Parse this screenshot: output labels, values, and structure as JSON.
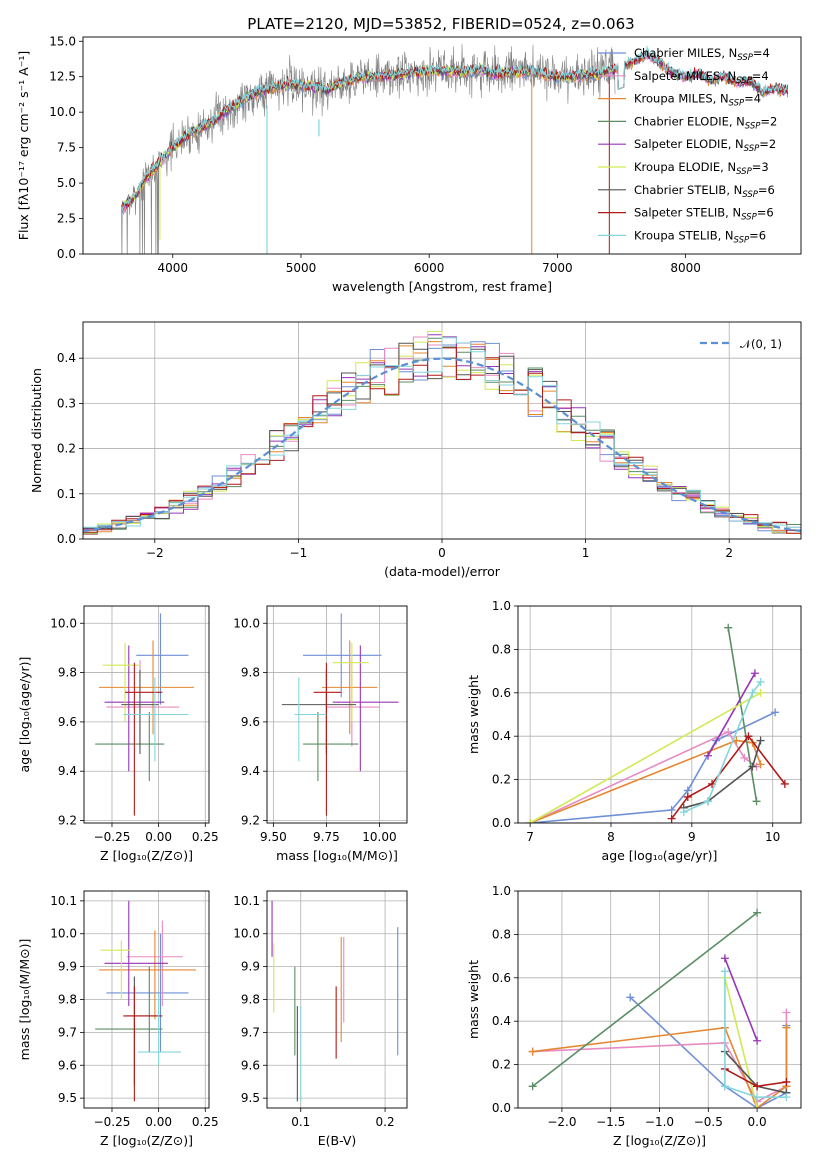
{
  "figure": {
    "title": "PLATE=2120, MJD=53852, FIBERID=0524, z=0.063"
  },
  "colors": [
    "#6f8fd8",
    "#e88bc2",
    "#e58730",
    "#5a8d62",
    "#9736b6",
    "#cfea55",
    "#545454",
    "#b21919",
    "#84d6dc"
  ],
  "chart_data": [
    {
      "id": "spectrum",
      "type": "line",
      "xlabel": "wavelength [Angstrom, rest frame]",
      "ylabel": "Flux [fλ10⁻¹⁷ erg cm⁻² s⁻¹ A⁻¹]",
      "xlim": [
        3300,
        8900
      ],
      "ylim": [
        0,
        15.3
      ],
      "xticks": [
        4000,
        5000,
        6000,
        7000,
        8000
      ],
      "yticks": [
        0,
        2.5,
        5,
        7.5,
        10,
        12.5,
        15
      ],
      "xtick_labels": [
        "4000",
        "5000",
        "6000",
        "7000",
        "8000"
      ],
      "ytick_labels": [
        "0.0",
        "2.5",
        "5.0",
        "7.5",
        "10.0",
        "12.5",
        "15.0"
      ],
      "grid": false,
      "legend_position": "right",
      "data_color": "#808080",
      "series": [
        {
          "name": "Chabrier MILES, N",
          "sub": "SSP",
          "eq": "=4"
        },
        {
          "name": "Salpeter MILES, N",
          "sub": "SSP",
          "eq": "=4"
        },
        {
          "name": "Kroupa MILES, N",
          "sub": "SSP",
          "eq": "=4"
        },
        {
          "name": "Chabrier ELODIE, N",
          "sub": "SSP",
          "eq": "=2"
        },
        {
          "name": "Salpeter ELODIE, N",
          "sub": "SSP",
          "eq": "=2"
        },
        {
          "name": "Kroupa ELODIE, N",
          "sub": "SSP",
          "eq": "=3"
        },
        {
          "name": "Chabrier STELIB, N",
          "sub": "SSP",
          "eq": "=6"
        },
        {
          "name": "Salpeter STELIB, N",
          "sub": "SSP",
          "eq": "=6"
        },
        {
          "name": "Kroupa STELIB, N",
          "sub": "SSP",
          "eq": "=6"
        }
      ],
      "continuum": [
        [
          3600,
          3.2
        ],
        [
          3700,
          4.0
        ],
        [
          3800,
          5.5
        ],
        [
          3900,
          6.5
        ],
        [
          4000,
          7.5
        ],
        [
          4100,
          8.3
        ],
        [
          4200,
          8.8
        ],
        [
          4300,
          9.2
        ],
        [
          4400,
          10.0
        ],
        [
          4500,
          10.6
        ],
        [
          4600,
          11.2
        ],
        [
          4700,
          11.5
        ],
        [
          4800,
          11.8
        ],
        [
          4900,
          12.0
        ],
        [
          5000,
          11.9
        ],
        [
          5100,
          11.8
        ],
        [
          5200,
          11.6
        ],
        [
          5300,
          12.0
        ],
        [
          5400,
          12.3
        ],
        [
          5500,
          12.5
        ],
        [
          5600,
          12.5
        ],
        [
          5700,
          12.6
        ],
        [
          5800,
          12.7
        ],
        [
          5900,
          12.8
        ],
        [
          6000,
          12.9
        ],
        [
          6100,
          12.9
        ],
        [
          6200,
          12.9
        ],
        [
          6300,
          12.9
        ],
        [
          6400,
          13.0
        ],
        [
          6500,
          12.7
        ],
        [
          6600,
          12.8
        ],
        [
          6700,
          12.8
        ],
        [
          6800,
          12.9
        ],
        [
          6900,
          12.7
        ],
        [
          7000,
          12.5
        ],
        [
          7100,
          12.5
        ],
        [
          7200,
          12.6
        ],
        [
          7300,
          12.7
        ],
        [
          7400,
          12.9
        ],
        [
          7500,
          13.2
        ],
        [
          7600,
          13.6
        ],
        [
          7700,
          14.1
        ],
        [
          7800,
          13.5
        ],
        [
          7900,
          12.7
        ],
        [
          8000,
          12.5
        ],
        [
          8100,
          12.7
        ],
        [
          8200,
          12.3
        ],
        [
          8300,
          12.5
        ],
        [
          8400,
          12.1
        ],
        [
          8500,
          12.2
        ],
        [
          8600,
          11.4
        ],
        [
          8700,
          11.7
        ],
        [
          8800,
          11.5
        ]
      ]
    },
    {
      "id": "residuals",
      "type": "line",
      "xlabel": "(data-model)/error",
      "ylabel": "Normed distribution",
      "xlim": [
        -2.5,
        2.5
      ],
      "ylim": [
        0,
        0.48
      ],
      "xticks": [
        -2,
        -1,
        0,
        1,
        2
      ],
      "yticks": [
        0,
        0.1,
        0.2,
        0.3,
        0.4
      ],
      "xtick_labels": [
        "−2",
        "−1",
        "0",
        "1",
        "2"
      ],
      "ytick_labels": [
        "0.0",
        "0.1",
        "0.2",
        "0.3",
        "0.4"
      ],
      "grid": true,
      "legend_position": "top-right",
      "series": [
        {
          "name": "𝒩(0, 1)",
          "type": "gaussian",
          "mean": 0,
          "sigma": 1
        }
      ],
      "hist_bin_width": 0.1
    },
    {
      "id": "age-vs-Z",
      "type": "errorbar",
      "xlabel": "Z [log₁₀(Z/Z⊙)]",
      "ylabel": "age  [log₁₀(age/yr)]",
      "xlim": [
        -0.4,
        0.27
      ],
      "ylim": [
        9.19,
        10.07
      ],
      "xticks": [
        -0.25,
        0,
        0.25
      ],
      "yticks": [
        9.2,
        9.4,
        9.6,
        9.8,
        10.0
      ],
      "xtick_labels": [
        "−0.25",
        "0.00",
        "0.25"
      ],
      "ytick_labels": [
        "9.2",
        "9.4",
        "9.6",
        "9.8",
        "10.0"
      ],
      "grid": true,
      "points": [
        {
          "x": 0.01,
          "xlo": -0.12,
          "xhi": 0.16,
          "y": 9.87,
          "ylo": 9.67,
          "yhi": 10.04
        },
        {
          "x": -0.1,
          "xlo": -0.28,
          "xhi": 0.11,
          "y": 9.66,
          "ylo": 9.5,
          "yhi": 9.85
        },
        {
          "x": -0.03,
          "xlo": -0.32,
          "xhi": 0.19,
          "y": 9.74,
          "ylo": 9.55,
          "yhi": 9.93
        },
        {
          "x": -0.05,
          "xlo": -0.34,
          "xhi": 0.03,
          "y": 9.51,
          "ylo": 9.36,
          "yhi": 9.64
        },
        {
          "x": -0.16,
          "xlo": -0.29,
          "xhi": 0.03,
          "y": 9.68,
          "ylo": 9.4,
          "yhi": 9.91
        },
        {
          "x": -0.18,
          "xlo": -0.3,
          "xhi": -0.1,
          "y": 9.83,
          "ylo": 9.6,
          "yhi": 9.92
        },
        {
          "x": -0.1,
          "xlo": -0.2,
          "xhi": 0.0,
          "y": 9.67,
          "ylo": 9.47,
          "yhi": 9.81
        },
        {
          "x": -0.13,
          "xlo": -0.18,
          "xhi": 0.02,
          "y": 9.72,
          "ylo": 9.22,
          "yhi": 9.84
        },
        {
          "x": -0.02,
          "xlo": -0.19,
          "xhi": 0.16,
          "y": 9.63,
          "ylo": 9.44,
          "yhi": 9.78
        }
      ]
    },
    {
      "id": "age-vs-mass",
      "type": "errorbar",
      "xlabel": "mass [log₁₀(M/M⊙)]",
      "ylabel": "",
      "xlim": [
        9.47,
        10.13
      ],
      "ylim": [
        9.19,
        10.07
      ],
      "xticks": [
        9.5,
        9.75,
        10.0
      ],
      "yticks": [
        9.2,
        9.4,
        9.6,
        9.8,
        10.0
      ],
      "xtick_labels": [
        "9.50",
        "9.75",
        "10.00"
      ],
      "ytick_labels": [
        "9.2",
        "9.4",
        "9.6",
        "9.8",
        "10.0"
      ],
      "grid": true,
      "points": [
        {
          "x": 9.82,
          "xlo": 9.64,
          "xhi": 10.01,
          "y": 9.87,
          "ylo": 9.7,
          "yhi": 10.04
        },
        {
          "x": 9.87,
          "xlo": 9.75,
          "xhi": 10.0,
          "y": 9.66,
          "ylo": 9.5,
          "yhi": 9.85
        },
        {
          "x": 9.86,
          "xlo": 9.73,
          "xhi": 9.99,
          "y": 9.74,
          "ylo": 9.55,
          "yhi": 9.93
        },
        {
          "x": 9.71,
          "xlo": 9.64,
          "xhi": 9.9,
          "y": 9.51,
          "ylo": 9.36,
          "yhi": 9.64
        },
        {
          "x": 9.91,
          "xlo": 9.78,
          "xhi": 10.09,
          "y": 9.68,
          "ylo": 9.4,
          "yhi": 9.91
        },
        {
          "x": 9.87,
          "xlo": 9.78,
          "xhi": 9.95,
          "y": 9.84,
          "ylo": 9.6,
          "yhi": 9.92
        },
        {
          "x": 9.75,
          "xlo": 9.54,
          "xhi": 9.89,
          "y": 9.67,
          "ylo": 9.47,
          "yhi": 9.81
        },
        {
          "x": 9.75,
          "xlo": 9.69,
          "xhi": 9.82,
          "y": 9.72,
          "ylo": 9.22,
          "yhi": 9.84
        },
        {
          "x": 9.62,
          "xlo": 9.6,
          "xhi": 9.75,
          "y": 9.63,
          "ylo": 9.44,
          "yhi": 9.78
        }
      ]
    },
    {
      "id": "weight-vs-age",
      "type": "line",
      "xlabel": "age  [log₁₀(age/yr)]",
      "ylabel": "mass weight",
      "xlim": [
        6.85,
        10.35
      ],
      "ylim": [
        0,
        1.0
      ],
      "xticks": [
        7,
        8,
        9,
        10
      ],
      "yticks": [
        0,
        0.2,
        0.4,
        0.6,
        0.8,
        1.0
      ],
      "xtick_labels": [
        "7",
        "8",
        "9",
        "10"
      ],
      "ytick_labels": [
        "0.0",
        "0.2",
        "0.4",
        "0.6",
        "0.8",
        "1.0"
      ],
      "grid": true,
      "series": [
        {
          "x": [
            7.0,
            8.75,
            8.95,
            9.3,
            10.03
          ],
          "y": [
            0.0,
            0.06,
            0.15,
            0.38,
            0.51
          ]
        },
        {
          "x": [
            7.0,
            9.45,
            9.65,
            9.8
          ],
          "y": [
            0.0,
            0.42,
            0.3,
            0.26
          ]
        },
        {
          "x": [
            7.0,
            9.55,
            9.75,
            9.85
          ],
          "y": [
            0.0,
            0.38,
            0.37,
            0.27
          ]
        },
        {
          "x": [
            9.45,
            9.8
          ],
          "y": [
            0.9,
            0.1
          ]
        },
        {
          "x": [
            9.2,
            9.78
          ],
          "y": [
            0.31,
            0.69
          ]
        },
        {
          "x": [
            7.0,
            9.85
          ],
          "y": [
            0.0,
            0.6
          ]
        },
        {
          "x": [
            8.9,
            9.2,
            9.75,
            9.85
          ],
          "y": [
            0.07,
            0.1,
            0.26,
            0.38
          ]
        },
        {
          "x": [
            8.75,
            8.95,
            9.25,
            9.7,
            10.15
          ],
          "y": [
            0.02,
            0.12,
            0.18,
            0.4,
            0.18
          ]
        },
        {
          "x": [
            8.9,
            9.2,
            9.75,
            9.85
          ],
          "y": [
            0.05,
            0.1,
            0.6,
            0.65
          ]
        }
      ]
    },
    {
      "id": "mass-vs-Z",
      "type": "errorbar",
      "xlabel": "Z [log₁₀(Z/Z⊙)]",
      "ylabel": "mass [log₁₀(M/M⊙)]",
      "xlim": [
        -0.4,
        0.27
      ],
      "ylim": [
        9.47,
        10.13
      ],
      "xticks": [
        -0.25,
        0,
        0.25
      ],
      "yticks": [
        9.5,
        9.6,
        9.7,
        9.8,
        9.9,
        10.0,
        10.1
      ],
      "xtick_labels": [
        "−0.25",
        "0.00",
        "0.25"
      ],
      "ytick_labels": [
        "9.5",
        "9.6",
        "9.7",
        "9.8",
        "9.9",
        "10.0",
        "10.1"
      ],
      "grid": true,
      "points": [
        {
          "x": 0.01,
          "xlo": -0.28,
          "xhi": 0.16,
          "y": 9.82,
          "ylo": 9.64,
          "yhi": 10.0
        },
        {
          "x": 0.02,
          "xlo": -0.17,
          "xhi": 0.13,
          "y": 9.93,
          "ylo": 9.78,
          "yhi": 10.04
        },
        {
          "x": -0.02,
          "xlo": -0.32,
          "xhi": 0.2,
          "y": 9.89,
          "ylo": 9.74,
          "yhi": 10.01
        },
        {
          "x": -0.05,
          "xlo": -0.34,
          "xhi": 0.02,
          "y": 9.71,
          "ylo": 9.64,
          "yhi": 9.9
        },
        {
          "x": -0.16,
          "xlo": -0.29,
          "xhi": 0.05,
          "y": 9.91,
          "ylo": 9.78,
          "yhi": 10.1
        },
        {
          "x": -0.2,
          "xlo": -0.31,
          "xhi": -0.15,
          "y": 9.95,
          "ylo": 9.8,
          "yhi": 9.98
        },
        {
          "x": -0.13,
          "xlo": -0.17,
          "xhi": 0.01,
          "y": 9.75,
          "ylo": 9.54,
          "yhi": 9.87
        },
        {
          "x": -0.13,
          "xlo": -0.19,
          "xhi": 0.02,
          "y": 9.75,
          "ylo": 9.49,
          "yhi": 9.84
        },
        {
          "x": 0.0,
          "xlo": -0.11,
          "xhi": 0.12,
          "y": 9.64,
          "ylo": 9.6,
          "yhi": 9.82
        }
      ]
    },
    {
      "id": "mass-vs-EBV",
      "type": "errorbar",
      "xlabel": "E(B-V)",
      "ylabel": "",
      "xlim": [
        0.06,
        0.226
      ],
      "ylim": [
        9.47,
        10.13
      ],
      "xticks": [
        0.1,
        0.2
      ],
      "yticks": [
        9.5,
        9.6,
        9.7,
        9.8,
        9.9,
        10.0,
        10.1
      ],
      "xtick_labels": [
        "0.1",
        "0.2"
      ],
      "ytick_labels": [
        "9.5",
        "9.6",
        "9.7",
        "9.8",
        "9.9",
        "10.0",
        "10.1"
      ],
      "grid": true,
      "points": [
        {
          "x": 0.215,
          "y": 9.82,
          "ylo": 9.63,
          "yhi": 10.02
        },
        {
          "x": 0.151,
          "y": 9.87,
          "ylo": 9.73,
          "yhi": 9.99
        },
        {
          "x": 0.148,
          "y": 9.86,
          "ylo": 9.67,
          "yhi": 9.99
        },
        {
          "x": 0.093,
          "y": 9.76,
          "ylo": 9.63,
          "yhi": 9.9
        },
        {
          "x": 0.066,
          "y": 9.96,
          "ylo": 9.93,
          "yhi": 10.1
        },
        {
          "x": 0.068,
          "y": 9.88,
          "ylo": 9.76,
          "yhi": 9.97
        },
        {
          "x": 0.096,
          "y": 9.63,
          "ylo": 9.49,
          "yhi": 9.78
        },
        {
          "x": 0.142,
          "y": 9.72,
          "ylo": 9.62,
          "yhi": 9.84
        },
        {
          "x": 0.1,
          "y": 9.64,
          "ylo": 9.49,
          "yhi": 9.78
        }
      ]
    },
    {
      "id": "weight-vs-Z",
      "type": "line",
      "xlabel": "Z [log₁₀(Z/Z⊙)]",
      "ylabel": "mass weight",
      "xlim": [
        -2.45,
        0.45
      ],
      "ylim": [
        0,
        1.0
      ],
      "xticks": [
        -2.0,
        -1.5,
        -1.0,
        -0.5,
        0.0
      ],
      "yticks": [
        0,
        0.2,
        0.4,
        0.6,
        0.8,
        1.0
      ],
      "xtick_labels": [
        "−2.0",
        "−1.5",
        "−1.0",
        "−0.5",
        "0.0"
      ],
      "ytick_labels": [
        "0.0",
        "0.2",
        "0.4",
        "0.6",
        "0.8",
        "1.0"
      ],
      "grid": true,
      "series": [
        {
          "x": [
            -1.3,
            -0.33,
            0.0,
            0.3,
            0.3
          ],
          "y": [
            0.51,
            0.1,
            0.0,
            0.07,
            0.38
          ]
        },
        {
          "x": [
            -2.3,
            -0.33,
            0.0,
            0.3,
            0.3
          ],
          "y": [
            0.26,
            0.3,
            0.03,
            0.1,
            0.44
          ]
        },
        {
          "x": [
            -2.3,
            -0.33,
            0.0,
            0.3,
            0.3
          ],
          "y": [
            0.26,
            0.37,
            0.0,
            0.1,
            0.37
          ]
        },
        {
          "x": [
            -2.3,
            0.0
          ],
          "y": [
            0.1,
            0.9
          ]
        },
        {
          "x": [
            -0.33,
            0.0
          ],
          "y": [
            0.69,
            0.31
          ]
        },
        {
          "x": [
            -0.33,
            0.0
          ],
          "y": [
            0.6,
            0.0
          ]
        },
        {
          "x": [
            -0.33,
            0.0,
            0.3
          ],
          "y": [
            0.26,
            0.1,
            0.07
          ]
        },
        {
          "x": [
            -0.33,
            0.0,
            0.3
          ],
          "y": [
            0.18,
            0.1,
            0.12
          ]
        },
        {
          "x": [
            -0.33,
            -0.33,
            0.0,
            0.3
          ],
          "y": [
            0.63,
            0.1,
            0.05,
            0.05
          ]
        }
      ]
    }
  ]
}
